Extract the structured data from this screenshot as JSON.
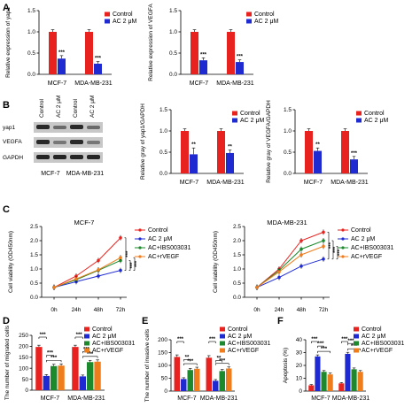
{
  "panel_labels": [
    "A",
    "B",
    "C",
    "D",
    "E",
    "F"
  ],
  "colors": {
    "Control": "#e8231f",
    "AC 2 μM": "#1f2bd1",
    "AC+IBS003031": "#1c8a2c",
    "AC+rVEGF": "#f07d1c"
  },
  "western_blot": {
    "lane_labels": [
      "Control",
      "AC 2 μM",
      "Control",
      "AC 2 μM"
    ],
    "bands": [
      "yap1",
      "VEGFA",
      "GAPDH"
    ],
    "cell_lines": [
      "MCF-7",
      "MDA-MB-231"
    ]
  },
  "chart_data": [
    {
      "id": "A1",
      "type": "bar",
      "ylabel": "Relative expression of yap1",
      "categories": [
        "MCF-7",
        "MDA-MB-231"
      ],
      "ylim": [
        0,
        1.5
      ],
      "yticks": [
        0.0,
        0.5,
        1.0,
        1.5
      ],
      "ytick_labels": [
        "0.0",
        "0.5",
        "1.0",
        "1.5"
      ],
      "series": [
        {
          "name": "Control",
          "values": [
            1.0,
            1.0
          ],
          "errors": [
            0.05,
            0.05
          ]
        },
        {
          "name": "AC 2 μM",
          "values": [
            0.37,
            0.25
          ],
          "errors": [
            0.07,
            0.05
          ]
        }
      ],
      "significance": [
        "***",
        "***"
      ],
      "legend": "top-right"
    },
    {
      "id": "A2",
      "type": "bar",
      "ylabel": "Relative expression of VEGFA",
      "categories": [
        "MCF-7",
        "MDA-MB-231"
      ],
      "ylim": [
        0,
        1.5
      ],
      "yticks": [
        0.0,
        0.5,
        1.0,
        1.5
      ],
      "ytick_labels": [
        "0.0",
        "0.5",
        "1.0",
        "1.5"
      ],
      "series": [
        {
          "name": "Control",
          "values": [
            1.0,
            1.0
          ],
          "errors": [
            0.05,
            0.05
          ]
        },
        {
          "name": "AC 2 μM",
          "values": [
            0.33,
            0.29
          ],
          "errors": [
            0.06,
            0.05
          ]
        }
      ],
      "significance": [
        "***",
        "***"
      ],
      "legend": "top-right"
    },
    {
      "id": "B1",
      "type": "bar",
      "ylabel": "Relative gray of yap1/GAPDH",
      "categories": [
        "MCF-7",
        "MDA-MB-231"
      ],
      "ylim": [
        0,
        1.5
      ],
      "yticks": [
        0.0,
        0.5,
        1.0,
        1.5
      ],
      "ytick_labels": [
        "0.0",
        "0.5",
        "1.0",
        "1.5"
      ],
      "series": [
        {
          "name": "Control",
          "values": [
            1.0,
            1.0
          ],
          "errors": [
            0.05,
            0.05
          ]
        },
        {
          "name": "AC 2 μM",
          "values": [
            0.45,
            0.48
          ],
          "errors": [
            0.15,
            0.07
          ]
        }
      ],
      "significance": [
        "**",
        "**"
      ],
      "legend": "top-right"
    },
    {
      "id": "B2",
      "type": "bar",
      "ylabel": "Relative gray of VEGFA/GAPDH",
      "categories": [
        "MCF-7",
        "MDA-MB-231"
      ],
      "ylim": [
        0,
        1.5
      ],
      "yticks": [
        0.0,
        0.5,
        1.0,
        1.5
      ],
      "ytick_labels": [
        "0.0",
        "0.5",
        "1.0",
        "1.5"
      ],
      "series": [
        {
          "name": "Control",
          "values": [
            1.0,
            1.0
          ],
          "errors": [
            0.05,
            0.05
          ]
        },
        {
          "name": "AC 2 μM",
          "values": [
            0.53,
            0.33
          ],
          "errors": [
            0.07,
            0.07
          ]
        }
      ],
      "significance": [
        "**",
        "***"
      ],
      "legend": "top-right"
    },
    {
      "id": "C1",
      "type": "line",
      "title": "MCF-7",
      "ylabel": "Cell viability (OD450nm)",
      "x": [
        "0h",
        "24h",
        "48h",
        "72h"
      ],
      "ylim": [
        0,
        2.5
      ],
      "yticks": [
        0.0,
        0.5,
        1.0,
        1.5,
        2.0,
        2.5
      ],
      "ytick_labels": [
        "0.0",
        "0.5",
        "1.0",
        "1.5",
        "2.0",
        "2.5"
      ],
      "series": [
        {
          "name": "Control",
          "values": [
            0.35,
            0.75,
            1.3,
            2.1
          ]
        },
        {
          "name": "AC 2 μM",
          "values": [
            0.35,
            0.55,
            0.75,
            0.95
          ]
        },
        {
          "name": "AC+IBS003031",
          "values": [
            0.35,
            0.62,
            0.95,
            1.3
          ]
        },
        {
          "name": "AC+rVEGF",
          "values": [
            0.35,
            0.65,
            0.97,
            1.4
          ]
        }
      ],
      "significance": [
        "***",
        "***",
        "***"
      ],
      "legend": "right"
    },
    {
      "id": "C2",
      "type": "line",
      "title": "MDA-MB-231",
      "ylabel": "Cell viability (OD450nm)",
      "x": [
        "0h",
        "24h",
        "48h",
        "72h"
      ],
      "ylim": [
        0,
        2.5
      ],
      "yticks": [
        0.0,
        0.5,
        1.0,
        1.5,
        2.0,
        2.5
      ],
      "ytick_labels": [
        "0.0",
        "0.5",
        "1.0",
        "1.5",
        "2.0",
        "2.5"
      ],
      "series": [
        {
          "name": "Control",
          "values": [
            0.35,
            1.0,
            2.0,
            2.3
          ]
        },
        {
          "name": "AC 2 μM",
          "values": [
            0.35,
            0.7,
            1.1,
            1.35
          ]
        },
        {
          "name": "AC+IBS003031",
          "values": [
            0.35,
            0.95,
            1.7,
            2.0
          ]
        },
        {
          "name": "AC+rVEGF",
          "values": [
            0.35,
            0.9,
            1.5,
            1.8
          ]
        }
      ],
      "significance": [
        "***",
        "***",
        "***"
      ],
      "legend": "right"
    },
    {
      "id": "D",
      "type": "bar",
      "ylabel": "The number of migrated cells",
      "categories": [
        "MCF-7",
        "MDA-MB-231"
      ],
      "ylim": [
        0,
        250
      ],
      "yticks": [
        0,
        50,
        100,
        150,
        200,
        250
      ],
      "ytick_labels": [
        "0",
        "50",
        "100",
        "150",
        "200",
        "250"
      ],
      "series": [
        {
          "name": "Control",
          "values": [
            197,
            197
          ],
          "errors": [
            8,
            8
          ]
        },
        {
          "name": "AC 2 μM",
          "values": [
            65,
            63
          ],
          "errors": [
            6,
            6
          ]
        },
        {
          "name": "AC+IBS003031",
          "values": [
            110,
            128
          ],
          "errors": [
            8,
            8
          ]
        },
        {
          "name": "AC+rVEGF",
          "values": [
            112,
            130
          ],
          "errors": [
            8,
            8
          ]
        }
      ],
      "significance": [
        {
          "group": 0,
          "from": 0,
          "to": 1,
          "label": "***"
        },
        {
          "group": 0,
          "from": 1,
          "to": 2,
          "label": "***"
        },
        {
          "group": 0,
          "from": 1,
          "to": 3,
          "label": "***"
        },
        {
          "group": 1,
          "from": 0,
          "to": 1,
          "label": "***"
        },
        {
          "group": 1,
          "from": 1,
          "to": 2,
          "label": "***"
        },
        {
          "group": 1,
          "from": 1,
          "to": 3,
          "label": "***"
        }
      ],
      "legend": "top-right"
    },
    {
      "id": "E",
      "type": "bar",
      "ylabel": "The number of invasive cells",
      "categories": [
        "MCF-7",
        "MDA-MB-231"
      ],
      "ylim": [
        0,
        200
      ],
      "yticks": [
        0,
        50,
        100,
        150,
        200
      ],
      "ytick_labels": [
        "0",
        "50",
        "100",
        "150",
        "200"
      ],
      "series": [
        {
          "name": "Control",
          "values": [
            133,
            130
          ],
          "errors": [
            8,
            8
          ]
        },
        {
          "name": "AC 2 μM",
          "values": [
            47,
            40
          ],
          "errors": [
            5,
            5
          ]
        },
        {
          "name": "AC+IBS003031",
          "values": [
            82,
            78
          ],
          "errors": [
            6,
            6
          ]
        },
        {
          "name": "AC+rVEGF",
          "values": [
            87,
            88
          ],
          "errors": [
            6,
            6
          ]
        }
      ],
      "significance": [
        {
          "group": 0,
          "from": 0,
          "to": 1,
          "label": "***"
        },
        {
          "group": 0,
          "from": 1,
          "to": 2,
          "label": "**"
        },
        {
          "group": 0,
          "from": 1,
          "to": 3,
          "label": "***"
        },
        {
          "group": 1,
          "from": 0,
          "to": 1,
          "label": "***"
        },
        {
          "group": 1,
          "from": 1,
          "to": 2,
          "label": "**"
        },
        {
          "group": 1,
          "from": 1,
          "to": 3,
          "label": "***"
        }
      ],
      "legend": "top-right"
    },
    {
      "id": "F",
      "type": "bar",
      "ylabel": "Apoptosis (%)",
      "categories": [
        "MCF-7",
        "MDA-MB-231"
      ],
      "ylim": [
        0,
        40
      ],
      "yticks": [
        0,
        10,
        20,
        30,
        40
      ],
      "ytick_labels": [
        "0",
        "10",
        "20",
        "30",
        "40"
      ],
      "series": [
        {
          "name": "Control",
          "values": [
            4.5,
            6
          ],
          "errors": [
            0.6,
            0.6
          ]
        },
        {
          "name": "AC 2 μM",
          "values": [
            27,
            29
          ],
          "errors": [
            1.2,
            1.2
          ]
        },
        {
          "name": "AC+IBS003031",
          "values": [
            15,
            17
          ],
          "errors": [
            1,
            1
          ]
        },
        {
          "name": "AC+rVEGF",
          "values": [
            13,
            15
          ],
          "errors": [
            1,
            1
          ]
        }
      ],
      "significance": [
        {
          "group": 0,
          "from": 0,
          "to": 1,
          "label": "***"
        },
        {
          "group": 0,
          "from": 1,
          "to": 2,
          "label": "***"
        },
        {
          "group": 0,
          "from": 1,
          "to": 3,
          "label": "***"
        },
        {
          "group": 1,
          "from": 0,
          "to": 1,
          "label": "***"
        },
        {
          "group": 1,
          "from": 1,
          "to": 2,
          "label": "***"
        },
        {
          "group": 1,
          "from": 1,
          "to": 3,
          "label": "***"
        }
      ],
      "legend": "top-right"
    }
  ]
}
